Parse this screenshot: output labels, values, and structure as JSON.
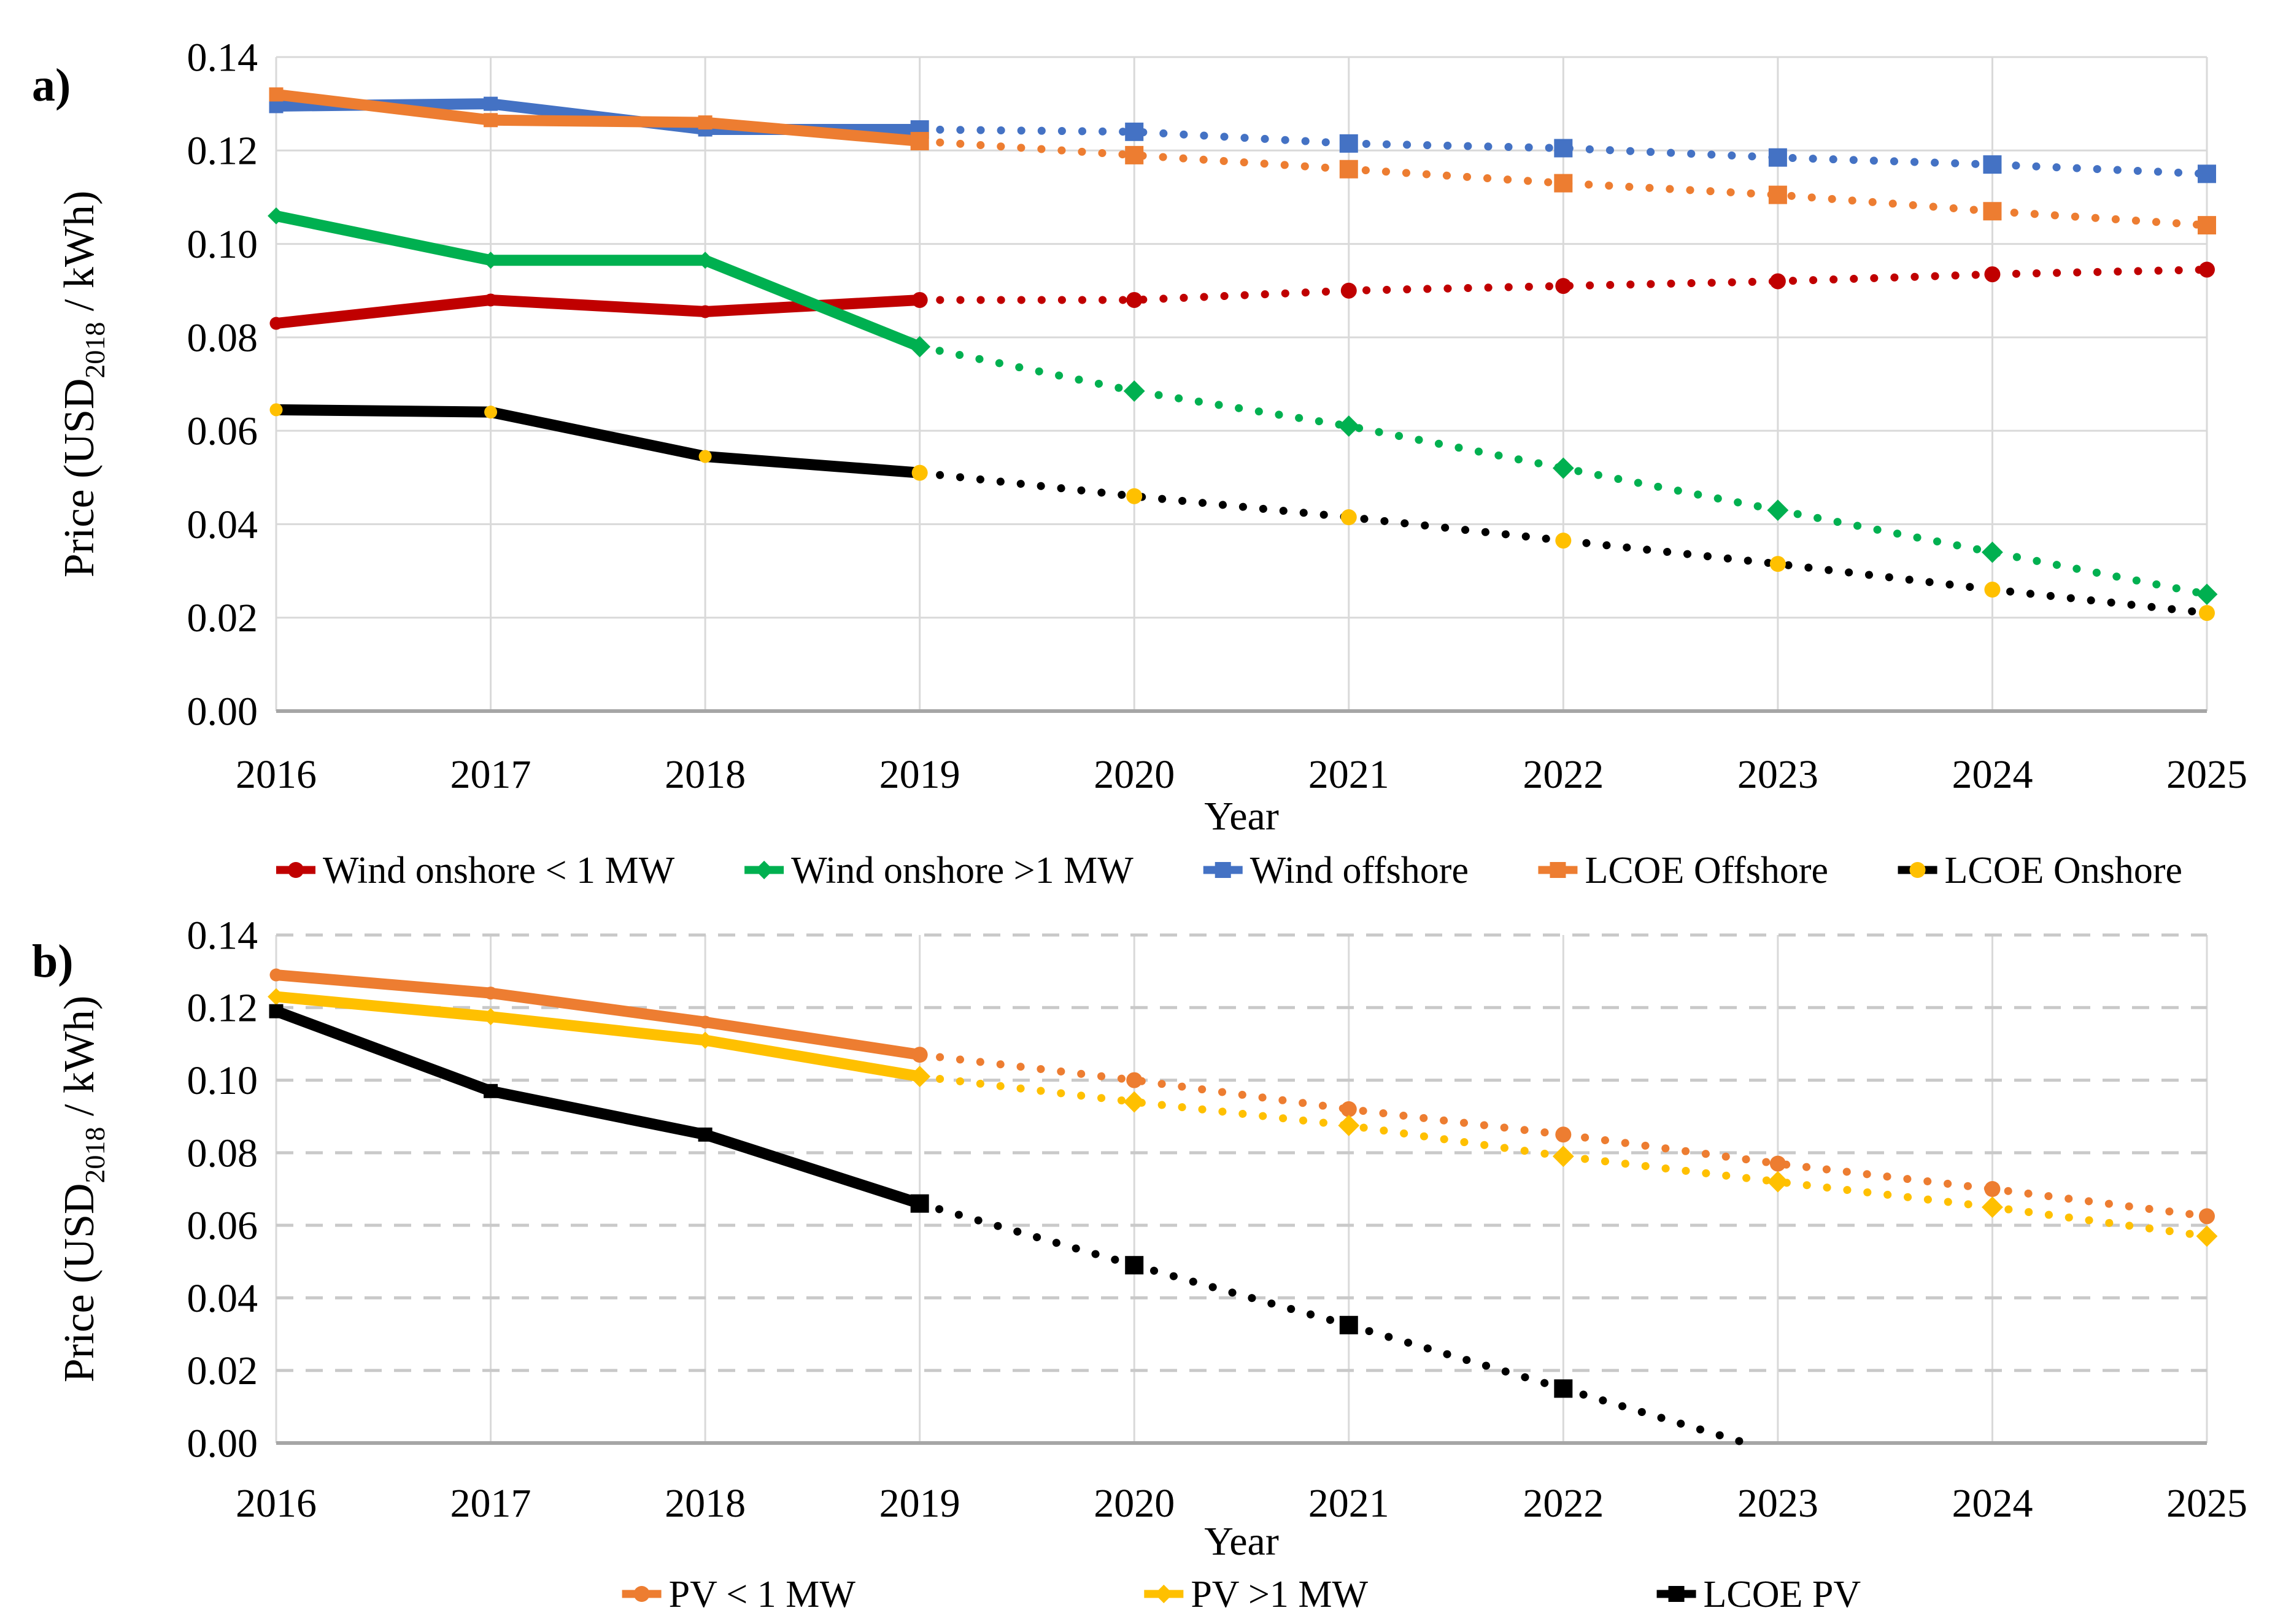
{
  "figure": {
    "panel_a_label": "a)",
    "panel_b_label": "b)"
  },
  "chart_data": [
    {
      "type": "line",
      "panel": "a",
      "title": "",
      "xlabel": "Year",
      "ylabel": "Price (USD2018 / kWh)",
      "ylabel_parts": {
        "pre": "Price (USD",
        "sub": "2018",
        "post": " / kWh)"
      },
      "x": [
        2016,
        2017,
        2018,
        2019,
        2020,
        2021,
        2022,
        2023,
        2024,
        2025
      ],
      "x_tick_labels": [
        "2016",
        "2017",
        "2018",
        "2019",
        "2020",
        "2021",
        "2022",
        "2023",
        "2024",
        "2025"
      ],
      "y_ticks": [
        "0.14",
        "0.12",
        "0.10",
        "0.08",
        "0.06",
        "0.04",
        "0.02",
        "0.00"
      ],
      "ylim": [
        0,
        0.14
      ],
      "solid_until_x": 2019,
      "grid": {
        "h_style": "solid",
        "v_style": "solid"
      },
      "legend_position": "bottom",
      "series": [
        {
          "name": "Wind onshore < 1 MW",
          "color": "#C00000",
          "marker": "circle",
          "values": [
            0.083,
            0.088,
            0.0855,
            0.088,
            0.088,
            0.09,
            0.091,
            0.092,
            0.0935,
            0.0945
          ]
        },
        {
          "name": "Wind onshore >1 MW",
          "color": "#00B050",
          "marker": "diamond",
          "values": [
            0.106,
            0.0965,
            0.0965,
            0.078,
            0.0685,
            0.061,
            0.052,
            0.043,
            0.034,
            0.025
          ]
        },
        {
          "name": "Wind offshore",
          "color": "#4472C4",
          "marker": "square",
          "values": [
            0.1295,
            0.13,
            0.1245,
            0.1245,
            0.124,
            0.1215,
            0.1205,
            0.1185,
            0.117,
            0.115
          ]
        },
        {
          "name": "LCOE Offshore",
          "color": "#ED7D31",
          "marker": "square",
          "values": [
            0.132,
            0.1265,
            0.126,
            0.122,
            0.119,
            0.116,
            0.113,
            0.1105,
            0.107,
            0.104
          ]
        },
        {
          "name": "LCOE Onshore",
          "color": "#000000",
          "marker": "circle",
          "marker_color": "#FFC000",
          "values": [
            0.0645,
            0.064,
            0.0545,
            0.051,
            0.046,
            0.0415,
            0.0365,
            0.0315,
            0.026,
            0.021
          ]
        }
      ]
    },
    {
      "type": "line",
      "panel": "b",
      "title": "",
      "xlabel": "Year",
      "ylabel": "Price (USD2018 / kWh)",
      "ylabel_parts": {
        "pre": "Price (USD",
        "sub": "2018",
        "post": " / kWh)"
      },
      "x": [
        2016,
        2017,
        2018,
        2019,
        2020,
        2021,
        2022,
        2023,
        2024,
        2025
      ],
      "x_tick_labels": [
        "2016",
        "2017",
        "2018",
        "2019",
        "2020",
        "2021",
        "2022",
        "2023",
        "2024",
        "2025"
      ],
      "y_ticks": [
        "0.14",
        "0.12",
        "0.10",
        "0.08",
        "0.06",
        "0.04",
        "0.02",
        "0.00"
      ],
      "ylim": [
        0,
        0.14
      ],
      "solid_until_x": 2019,
      "grid": {
        "h_style": "dashed",
        "v_style": "solid"
      },
      "legend_position": "bottom",
      "series": [
        {
          "name": "PV < 1 MW",
          "color": "#ED7D31",
          "marker": "circle",
          "values": [
            0.129,
            0.124,
            0.116,
            0.107,
            0.1,
            0.092,
            0.085,
            0.077,
            0.07,
            0.0625
          ]
        },
        {
          "name": "PV >1 MW",
          "color": "#FFC000",
          "marker": "diamond",
          "values": [
            0.123,
            0.1175,
            0.111,
            0.101,
            0.094,
            0.0875,
            0.079,
            0.072,
            0.065,
            0.057
          ]
        },
        {
          "name": "LCOE PV",
          "color": "#000000",
          "marker": "square",
          "values": [
            0.119,
            0.097,
            0.085,
            0.066,
            0.049,
            0.0325,
            0.015,
            null,
            null,
            null
          ],
          "tail_point": {
            "x": 2022.85,
            "y": 0.0
          }
        }
      ]
    }
  ]
}
